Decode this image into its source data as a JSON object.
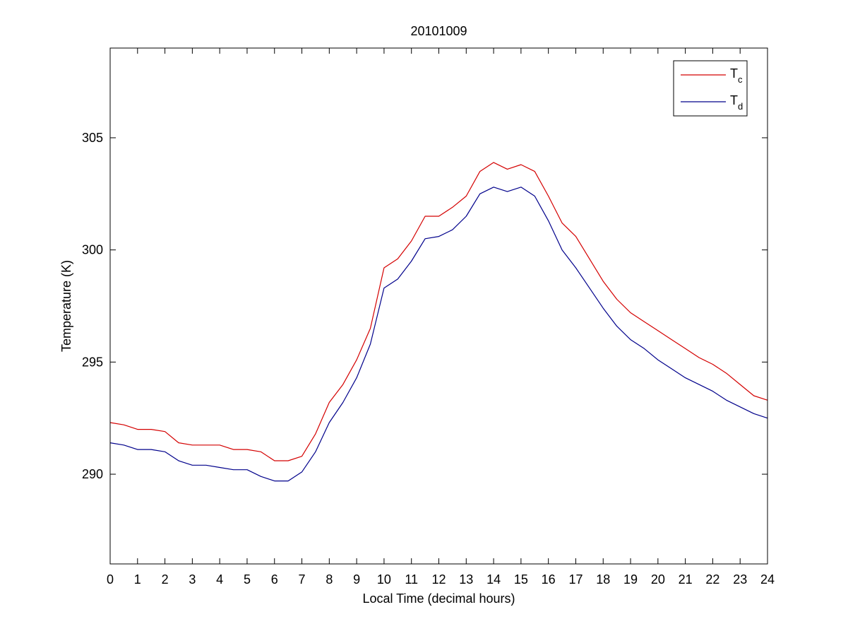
{
  "chart_data": {
    "type": "line",
    "title": "20101009",
    "xlabel": "Local Time (decimal hours)",
    "ylabel": "Temperature (K)",
    "xlim": [
      0,
      24
    ],
    "ylim": [
      286,
      309
    ],
    "xticks": [
      0,
      1,
      2,
      3,
      4,
      5,
      6,
      7,
      8,
      9,
      10,
      11,
      12,
      13,
      14,
      15,
      16,
      17,
      18,
      19,
      20,
      21,
      22,
      23,
      24
    ],
    "yticks": [
      290,
      295,
      300,
      305
    ],
    "grid": false,
    "legend_position": "top-right",
    "series": [
      {
        "name": "T",
        "subscript": "c",
        "color": "#d40000",
        "x": [
          0,
          0.5,
          1,
          1.5,
          2,
          2.5,
          3,
          3.5,
          4,
          4.5,
          5,
          5.5,
          6,
          6.5,
          7,
          7.5,
          8,
          8.5,
          9,
          9.5,
          10,
          10.5,
          11,
          11.5,
          12,
          12.5,
          13,
          13.5,
          14,
          14.5,
          15,
          15.5,
          16,
          16.5,
          17,
          17.5,
          18,
          18.5,
          19,
          19.5,
          20,
          20.5,
          21,
          21.5,
          22,
          22.5,
          23,
          23.5,
          24
        ],
        "values": [
          292.3,
          292.2,
          292.0,
          292.0,
          291.9,
          291.4,
          291.3,
          291.3,
          291.3,
          291.1,
          291.1,
          291.0,
          290.6,
          290.6,
          290.8,
          291.8,
          293.2,
          294.0,
          295.1,
          296.5,
          299.2,
          299.6,
          300.4,
          301.5,
          301.5,
          301.9,
          302.4,
          303.5,
          303.9,
          303.6,
          303.8,
          303.5,
          302.4,
          301.2,
          300.6,
          299.6,
          298.6,
          297.8,
          297.2,
          296.8,
          296.4,
          296.0,
          295.6,
          295.2,
          294.9,
          294.5,
          294.0,
          293.5,
          293.3
        ]
      },
      {
        "name": "T",
        "subscript": "d",
        "color": "#00008b",
        "x": [
          0,
          0.5,
          1,
          1.5,
          2,
          2.5,
          3,
          3.5,
          4,
          4.5,
          5,
          5.5,
          6,
          6.5,
          7,
          7.5,
          8,
          8.5,
          9,
          9.5,
          10,
          10.5,
          11,
          11.5,
          12,
          12.5,
          13,
          13.5,
          14,
          14.5,
          15,
          15.5,
          16,
          16.5,
          17,
          17.5,
          18,
          18.5,
          19,
          19.5,
          20,
          20.5,
          21,
          21.5,
          22,
          22.5,
          23,
          23.5,
          24
        ],
        "values": [
          291.4,
          291.3,
          291.1,
          291.1,
          291.0,
          290.6,
          290.4,
          290.4,
          290.3,
          290.2,
          290.2,
          289.9,
          289.7,
          289.7,
          290.1,
          291.0,
          292.3,
          293.2,
          294.3,
          295.8,
          298.3,
          298.7,
          299.5,
          300.5,
          300.6,
          300.9,
          301.5,
          302.5,
          302.8,
          302.6,
          302.8,
          302.4,
          301.3,
          300.0,
          299.2,
          298.3,
          297.4,
          296.6,
          296.0,
          295.6,
          295.1,
          294.7,
          294.3,
          294.0,
          293.7,
          293.3,
          293.0,
          292.7,
          292.5
        ]
      }
    ]
  }
}
